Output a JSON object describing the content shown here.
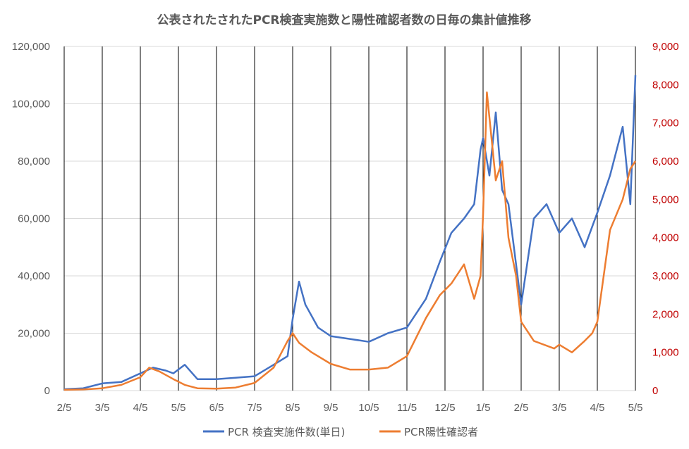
{
  "chart_data": {
    "type": "line",
    "title": "公表されたされたPCR検査実施数と陽性確認者数の日毎の集計値推移",
    "xlabel": "",
    "ylabel": "",
    "x_ticks": [
      "2/5",
      "3/5",
      "4/5",
      "5/5",
      "6/5",
      "7/5",
      "8/5",
      "9/5",
      "10/5",
      "11/5",
      "12/5",
      "1/5",
      "2/5",
      "3/5",
      "4/5",
      "5/5"
    ],
    "y_left": {
      "ylim": [
        0,
        120000
      ],
      "ticks": [
        "0",
        "20,000",
        "40,000",
        "60,000",
        "80,000",
        "100,000",
        "120,000"
      ]
    },
    "y_right": {
      "ylim": [
        0,
        9000
      ],
      "ticks": [
        "0",
        "1,000",
        "2,000",
        "3,000",
        "4,000",
        "5,000",
        "6,000",
        "7,000",
        "8,000",
        "9,000"
      ]
    },
    "grid": "vertical lines at month ticks, horizontal gridlines",
    "legend_position": "bottom",
    "series": [
      {
        "name": "PCR 検査実施件数(単日)",
        "axis": "left",
        "color": "#4472c4",
        "x": [
          "2/5",
          "2/20",
          "3/5",
          "3/20",
          "4/5",
          "4/15",
          "4/25",
          "5/1",
          "5/10",
          "5/20",
          "6/5",
          "6/20",
          "7/5",
          "7/20",
          "8/1",
          "8/5",
          "8/10",
          "8/15",
          "8/25",
          "9/5",
          "9/20",
          "10/5",
          "10/20",
          "11/5",
          "11/20",
          "12/1",
          "12/10",
          "12/20",
          "12/28",
          "1/3",
          "1/5",
          "1/10",
          "1/15",
          "1/20",
          "1/25",
          "2/5",
          "2/15",
          "2/25",
          "3/5",
          "3/15",
          "3/25",
          "4/5",
          "4/15",
          "4/25",
          "5/1",
          "5/5"
        ],
        "values": [
          500,
          800,
          2500,
          3000,
          6000,
          8000,
          7000,
          6000,
          9000,
          4000,
          4000,
          4500,
          5000,
          9000,
          12000,
          25000,
          38000,
          30000,
          22000,
          19000,
          18000,
          17000,
          20000,
          22000,
          32000,
          45000,
          55000,
          60000,
          65000,
          84000,
          88000,
          75000,
          97000,
          70000,
          65000,
          30000,
          60000,
          65000,
          55000,
          60000,
          50000,
          62000,
          75000,
          92000,
          65000,
          110000
        ]
      },
      {
        "name": "PCR陽性確認者",
        "axis": "right",
        "color": "#ed7d31",
        "x": [
          "2/5",
          "2/20",
          "3/5",
          "3/20",
          "4/5",
          "4/12",
          "4/20",
          "5/1",
          "5/10",
          "5/20",
          "6/5",
          "6/20",
          "7/5",
          "7/20",
          "8/1",
          "8/5",
          "8/10",
          "8/20",
          "9/5",
          "9/20",
          "10/5",
          "10/20",
          "11/5",
          "11/20",
          "12/1",
          "12/10",
          "12/20",
          "12/28",
          "1/3",
          "1/5",
          "1/8",
          "1/15",
          "1/20",
          "1/25",
          "2/1",
          "2/5",
          "2/15",
          "3/1",
          "3/5",
          "3/15",
          "3/25",
          "4/1",
          "4/5",
          "4/15",
          "4/25",
          "5/1",
          "5/5"
        ],
        "values": [
          20,
          30,
          60,
          150,
          350,
          600,
          500,
          300,
          150,
          60,
          50,
          80,
          200,
          600,
          1300,
          1500,
          1250,
          1000,
          700,
          550,
          550,
          600,
          900,
          1900,
          2500,
          2800,
          3300,
          2400,
          3000,
          4600,
          7800,
          5500,
          6000,
          4000,
          3000,
          1800,
          1300,
          1100,
          1200,
          1000,
          1300,
          1500,
          1800,
          4200,
          5000,
          5800,
          6000
        ]
      }
    ]
  },
  "legend": {
    "item_1": "PCR 検査実施件数(単日)",
    "item_2": "PCR陽性確認者"
  }
}
